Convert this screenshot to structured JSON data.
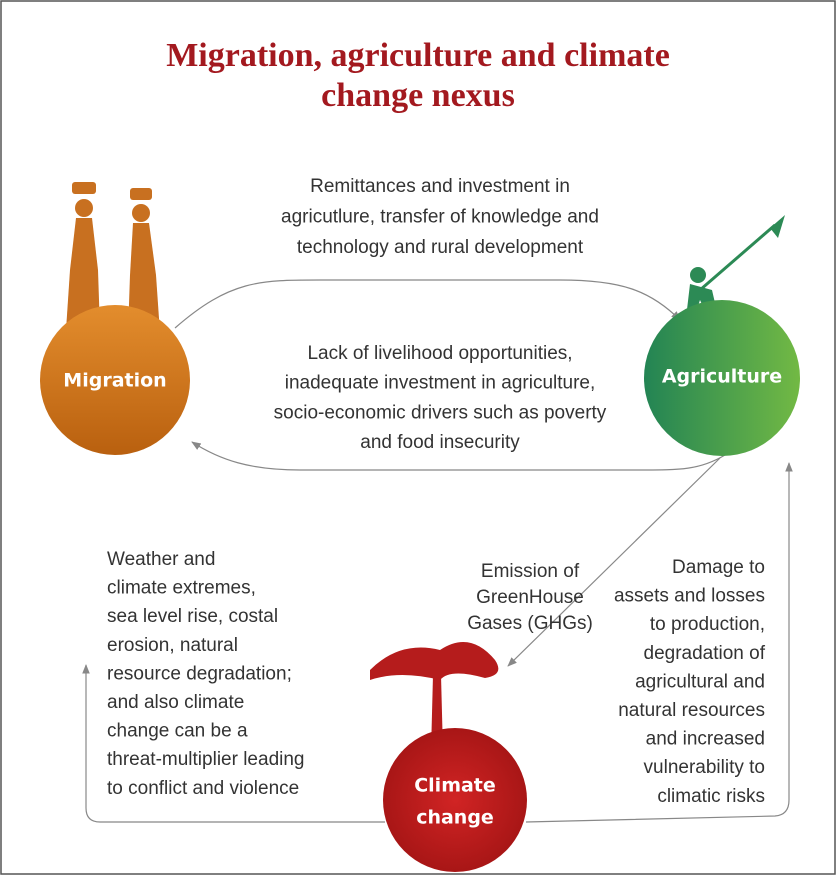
{
  "header": {
    "title_lines": [
      "Migration, agriculture and climate",
      "change nexus"
    ]
  },
  "nodes": [
    {
      "label_lines": [
        "Migration"
      ]
    },
    {
      "label_lines": [
        "Agriculture"
      ]
    },
    {
      "label_lines": [
        "Climate",
        "change"
      ]
    }
  ],
  "edges": [
    {
      "label_lines": [
        "Remittances and investment in",
        "agricutlure, transfer of knowledge and",
        "technology and rural development"
      ]
    },
    {
      "label_lines": [
        "Lack of livelihood opportunities,",
        "inadequate investment in agriculture,",
        "socio-economic drivers such as poverty",
        "and food insecurity"
      ]
    },
    {
      "label_lines": [
        "Emission of",
        "GreenHouse",
        "Gases (GHGs)"
      ]
    },
    {
      "label_lines": [
        "Weather and",
        "climate extremes,",
        "sea level rise, costal",
        "erosion, natural",
        "resource degradation;",
        "and also climate",
        "change can be a",
        "threat-multiplier leading",
        "to conflict and violence"
      ]
    },
    {
      "label_lines": [
        "Damage to",
        "assets and losses",
        "to production,",
        "degradation of",
        "agricultural and",
        "natural resources",
        "and increased",
        "vulnerability to",
        "climatic risks"
      ]
    }
  ]
}
